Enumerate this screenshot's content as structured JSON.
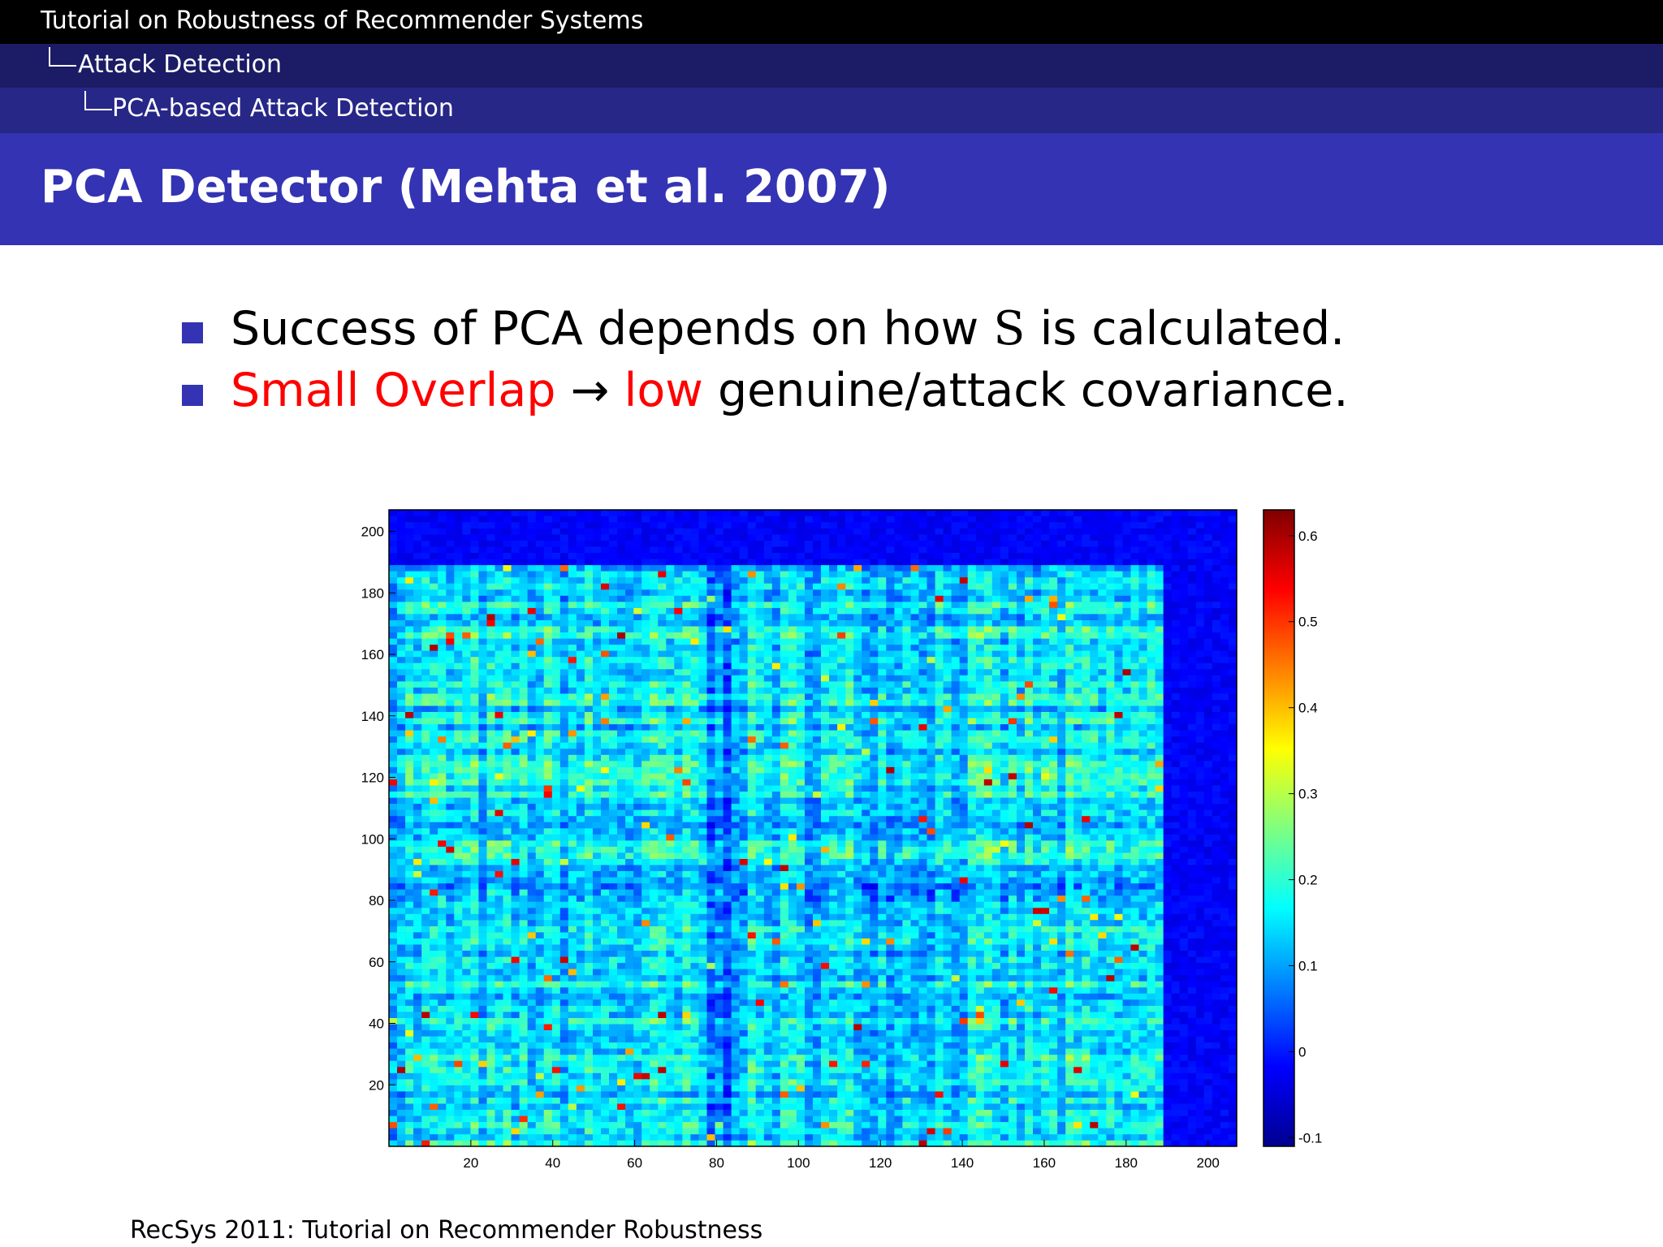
{
  "header": {
    "presentation_title": "Tutorial on Robustness of Recommender Systems",
    "section": "Attack Detection",
    "subsection": "PCA-based Attack Detection"
  },
  "slide": {
    "title": "PCA Detector (Mehta et al. 2007)",
    "bullets": [
      {
        "text_before": "Success of PCA depends on how ",
        "math": "S",
        "text_after": " is calculated."
      },
      {
        "red1": "Small Overlap",
        "arrow": "→",
        "red2": "low",
        "text_after": " genuine/attack covariance."
      }
    ]
  },
  "colors": {
    "accent": "#3333b3",
    "highlight": "#ff0000",
    "header_dark": "#000000",
    "header_mid": "#1b1b66",
    "header_light": "#272787"
  },
  "chart_data": {
    "type": "heatmap",
    "xticks": [
      20,
      40,
      60,
      80,
      100,
      120,
      140,
      160,
      180,
      200
    ],
    "yticks": [
      20,
      40,
      60,
      80,
      100,
      120,
      140,
      160,
      180,
      200
    ],
    "xlim": [
      0,
      207
    ],
    "ylim": [
      0,
      207
    ],
    "colorbar_ticks": [
      "0.6",
      "0.5",
      "0.4",
      "0.3",
      "0.2",
      "0.1",
      "0",
      "-0.1"
    ],
    "colorbar_range": [
      -0.11,
      0.63
    ],
    "colormap": "jet",
    "block_boundary": 188
  },
  "footer": {
    "text": "RecSys 2011: Tutorial on Recommender Robustness"
  }
}
